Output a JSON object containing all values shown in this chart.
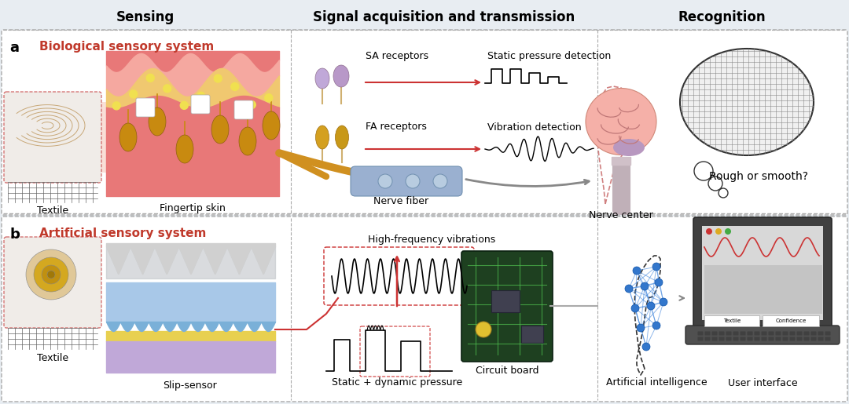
{
  "title_sensing": "Sensing",
  "title_signal": "Signal acquisition and transmission",
  "title_recognition": "Recognition",
  "label_a": "a",
  "label_b": "b",
  "bio_system": "Biological sensory system",
  "art_system": "Artificial sensory system",
  "textile_a": "Textile",
  "fingertip": "Fingertip skin",
  "sa_receptors": "SA receptors",
  "fa_receptors": "FA receptors",
  "static_detect": "Static pressure detection",
  "vibration_detect": "Vibration detection",
  "nerve_fiber": "Nerve fiber",
  "nerve_center": "Nerve center",
  "rough_smooth": "Rough or smooth?",
  "textile_b": "Textile",
  "slip_sensor": "Slip-sensor",
  "high_freq": "High-frequency vibrations",
  "static_dynamic": "Static + dynamic pressure",
  "circuit_board": "Circuit board",
  "ai": "Artificial intelligence",
  "user_interface": "User interface",
  "red_color": "#c0392b",
  "pink_skin": "#f5b8b0",
  "dark_pink": "#e07070",
  "orange_layer": "#f0c870",
  "yellow_dot": "#f5e050",
  "receptor_gold": "#c88a10",
  "nerve_orange": "#d09020",
  "brain_pink": "#f0a8a0",
  "brain_purple": "#c0a0c8",
  "head_dashed": "#d08080",
  "panel_bg": "#f0f4f8",
  "panel_a_bg": "#eef2f6",
  "panel_b_bg": "#eef2f6"
}
